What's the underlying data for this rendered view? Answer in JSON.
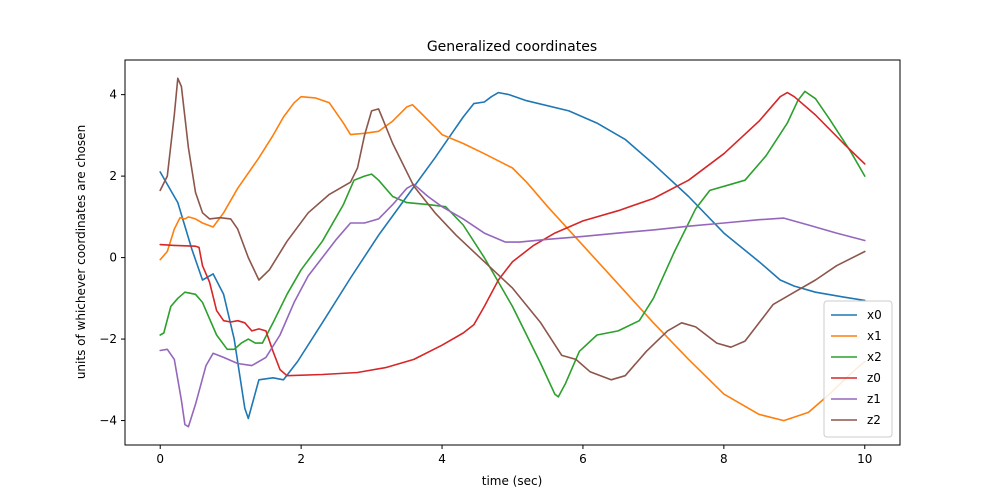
{
  "chart_data": {
    "type": "line",
    "title": "Generalized coordinates",
    "xlabel": "time (sec)",
    "ylabel": "units of whichever coordinates are chosen",
    "xlim": [
      -0.5,
      10.5
    ],
    "ylim": [
      -4.6,
      4.85
    ],
    "xticks": [
      0,
      2,
      4,
      6,
      8,
      10
    ],
    "xtick_labels": [
      "0",
      "2",
      "4",
      "6",
      "8",
      "10"
    ],
    "yticks": [
      -4,
      -2,
      0,
      2,
      4
    ],
    "ytick_labels": [
      "−4",
      "−2",
      "0",
      "2",
      "4"
    ],
    "grid": false,
    "legend_position": "lower right",
    "series": [
      {
        "name": "x0",
        "color": "#1f77b4",
        "points": [
          [
            0,
            2.1
          ],
          [
            0.25,
            1.35
          ],
          [
            0.45,
            0.2
          ],
          [
            0.6,
            -0.55
          ],
          [
            0.75,
            -0.4
          ],
          [
            0.9,
            -0.9
          ],
          [
            1.05,
            -2.0
          ],
          [
            1.2,
            -3.7
          ],
          [
            1.25,
            -3.95
          ],
          [
            1.4,
            -3.0
          ],
          [
            1.6,
            -2.95
          ],
          [
            1.75,
            -3.0
          ],
          [
            1.95,
            -2.55
          ],
          [
            2.3,
            -1.6
          ],
          [
            2.7,
            -0.5
          ],
          [
            3.1,
            0.55
          ],
          [
            3.5,
            1.5
          ],
          [
            3.9,
            2.45
          ],
          [
            4.3,
            3.45
          ],
          [
            4.45,
            3.78
          ],
          [
            4.6,
            3.82
          ],
          [
            4.7,
            3.95
          ],
          [
            4.8,
            4.05
          ],
          [
            4.95,
            4.0
          ],
          [
            5.2,
            3.85
          ],
          [
            5.8,
            3.6
          ],
          [
            6.2,
            3.3
          ],
          [
            6.6,
            2.9
          ],
          [
            7.0,
            2.3
          ],
          [
            7.5,
            1.5
          ],
          [
            8.0,
            0.6
          ],
          [
            8.5,
            -0.1
          ],
          [
            8.8,
            -0.55
          ],
          [
            9.0,
            -0.7
          ],
          [
            9.3,
            -0.85
          ],
          [
            9.7,
            -0.97
          ],
          [
            10.0,
            -1.05
          ]
        ]
      },
      {
        "name": "x1",
        "color": "#ff7f0e",
        "points": [
          [
            0,
            -0.05
          ],
          [
            0.1,
            0.15
          ],
          [
            0.2,
            0.7
          ],
          [
            0.28,
            0.98
          ],
          [
            0.35,
            0.95
          ],
          [
            0.4,
            1.0
          ],
          [
            0.5,
            0.95
          ],
          [
            0.6,
            0.85
          ],
          [
            0.75,
            0.75
          ],
          [
            0.9,
            1.1
          ],
          [
            1.1,
            1.7
          ],
          [
            1.4,
            2.45
          ],
          [
            1.6,
            3.0
          ],
          [
            1.75,
            3.45
          ],
          [
            1.9,
            3.8
          ],
          [
            2.0,
            3.95
          ],
          [
            2.2,
            3.92
          ],
          [
            2.4,
            3.8
          ],
          [
            2.6,
            3.3
          ],
          [
            2.7,
            3.02
          ],
          [
            2.9,
            3.05
          ],
          [
            3.1,
            3.1
          ],
          [
            3.3,
            3.35
          ],
          [
            3.5,
            3.7
          ],
          [
            3.58,
            3.75
          ],
          [
            3.7,
            3.55
          ],
          [
            3.9,
            3.2
          ],
          [
            4.0,
            3.02
          ],
          [
            4.3,
            2.8
          ],
          [
            4.6,
            2.55
          ],
          [
            5.0,
            2.2
          ],
          [
            5.2,
            1.85
          ],
          [
            5.5,
            1.25
          ],
          [
            6.0,
            0.3
          ],
          [
            6.5,
            -0.65
          ],
          [
            7.0,
            -1.6
          ],
          [
            7.5,
            -2.5
          ],
          [
            8.0,
            -3.35
          ],
          [
            8.5,
            -3.85
          ],
          [
            8.85,
            -4.0
          ],
          [
            9.2,
            -3.8
          ],
          [
            9.5,
            -3.35
          ],
          [
            9.8,
            -2.85
          ],
          [
            10.0,
            -2.55
          ]
        ]
      },
      {
        "name": "x2",
        "color": "#2ca02c",
        "points": [
          [
            0,
            -1.9
          ],
          [
            0.05,
            -1.85
          ],
          [
            0.15,
            -1.2
          ],
          [
            0.25,
            -1.0
          ],
          [
            0.35,
            -0.85
          ],
          [
            0.5,
            -0.9
          ],
          [
            0.6,
            -1.1
          ],
          [
            0.7,
            -1.5
          ],
          [
            0.8,
            -1.9
          ],
          [
            0.95,
            -2.25
          ],
          [
            1.05,
            -2.25
          ],
          [
            1.15,
            -2.1
          ],
          [
            1.25,
            -2.0
          ],
          [
            1.35,
            -2.1
          ],
          [
            1.45,
            -2.1
          ],
          [
            1.6,
            -1.6
          ],
          [
            1.8,
            -0.9
          ],
          [
            2.0,
            -0.3
          ],
          [
            2.3,
            0.4
          ],
          [
            2.6,
            1.3
          ],
          [
            2.75,
            1.9
          ],
          [
            2.9,
            2.0
          ],
          [
            3.0,
            2.05
          ],
          [
            3.1,
            1.9
          ],
          [
            3.3,
            1.5
          ],
          [
            3.5,
            1.35
          ],
          [
            3.8,
            1.3
          ],
          [
            4.05,
            1.25
          ],
          [
            4.3,
            0.8
          ],
          [
            4.6,
            0.0
          ],
          [
            5.0,
            -1.2
          ],
          [
            5.4,
            -2.6
          ],
          [
            5.6,
            -3.35
          ],
          [
            5.65,
            -3.42
          ],
          [
            5.75,
            -3.1
          ],
          [
            5.95,
            -2.3
          ],
          [
            6.2,
            -1.9
          ],
          [
            6.5,
            -1.8
          ],
          [
            6.8,
            -1.55
          ],
          [
            7.0,
            -1.0
          ],
          [
            7.3,
            0.15
          ],
          [
            7.6,
            1.2
          ],
          [
            7.8,
            1.65
          ],
          [
            8.1,
            1.8
          ],
          [
            8.3,
            1.9
          ],
          [
            8.6,
            2.5
          ],
          [
            8.9,
            3.3
          ],
          [
            9.05,
            3.85
          ],
          [
            9.15,
            4.08
          ],
          [
            9.3,
            3.9
          ],
          [
            9.5,
            3.4
          ],
          [
            9.8,
            2.6
          ],
          [
            10.0,
            2.0
          ]
        ]
      },
      {
        "name": "z0",
        "color": "#d62728",
        "points": [
          [
            0,
            0.32
          ],
          [
            0.2,
            0.3
          ],
          [
            0.5,
            0.28
          ],
          [
            0.55,
            0.25
          ],
          [
            0.6,
            -0.2
          ],
          [
            0.7,
            -0.6
          ],
          [
            0.8,
            -1.3
          ],
          [
            0.9,
            -1.55
          ],
          [
            1.0,
            -1.58
          ],
          [
            1.1,
            -1.55
          ],
          [
            1.2,
            -1.6
          ],
          [
            1.3,
            -1.8
          ],
          [
            1.4,
            -1.75
          ],
          [
            1.5,
            -1.8
          ],
          [
            1.6,
            -2.3
          ],
          [
            1.7,
            -2.75
          ],
          [
            1.8,
            -2.9
          ],
          [
            2.3,
            -2.87
          ],
          [
            2.8,
            -2.82
          ],
          [
            3.2,
            -2.7
          ],
          [
            3.6,
            -2.5
          ],
          [
            4.0,
            -2.15
          ],
          [
            4.3,
            -1.85
          ],
          [
            4.45,
            -1.65
          ],
          [
            4.6,
            -1.2
          ],
          [
            4.8,
            -0.55
          ],
          [
            5.0,
            -0.1
          ],
          [
            5.3,
            0.3
          ],
          [
            5.6,
            0.6
          ],
          [
            6.0,
            0.9
          ],
          [
            6.5,
            1.15
          ],
          [
            7.0,
            1.45
          ],
          [
            7.5,
            1.9
          ],
          [
            8.0,
            2.55
          ],
          [
            8.5,
            3.35
          ],
          [
            8.8,
            3.95
          ],
          [
            8.9,
            4.05
          ],
          [
            9.0,
            3.95
          ],
          [
            9.3,
            3.5
          ],
          [
            9.7,
            2.8
          ],
          [
            10.0,
            2.3
          ]
        ]
      },
      {
        "name": "z1",
        "color": "#9467bd",
        "points": [
          [
            0,
            -2.28
          ],
          [
            0.1,
            -2.25
          ],
          [
            0.2,
            -2.5
          ],
          [
            0.3,
            -3.5
          ],
          [
            0.35,
            -4.1
          ],
          [
            0.4,
            -4.15
          ],
          [
            0.5,
            -3.6
          ],
          [
            0.65,
            -2.65
          ],
          [
            0.75,
            -2.35
          ],
          [
            0.9,
            -2.45
          ],
          [
            1.1,
            -2.6
          ],
          [
            1.3,
            -2.65
          ],
          [
            1.5,
            -2.45
          ],
          [
            1.7,
            -1.9
          ],
          [
            1.9,
            -1.1
          ],
          [
            2.1,
            -0.45
          ],
          [
            2.3,
            0.0
          ],
          [
            2.5,
            0.45
          ],
          [
            2.7,
            0.85
          ],
          [
            2.9,
            0.85
          ],
          [
            3.1,
            0.95
          ],
          [
            3.3,
            1.3
          ],
          [
            3.5,
            1.7
          ],
          [
            3.6,
            1.8
          ],
          [
            3.8,
            1.5
          ],
          [
            4.0,
            1.25
          ],
          [
            4.3,
            0.95
          ],
          [
            4.6,
            0.6
          ],
          [
            4.9,
            0.38
          ],
          [
            5.1,
            0.38
          ],
          [
            5.5,
            0.45
          ],
          [
            6.0,
            0.52
          ],
          [
            6.5,
            0.6
          ],
          [
            7.0,
            0.68
          ],
          [
            7.5,
            0.77
          ],
          [
            8.0,
            0.85
          ],
          [
            8.5,
            0.93
          ],
          [
            8.85,
            0.97
          ],
          [
            9.2,
            0.8
          ],
          [
            9.6,
            0.6
          ],
          [
            10.0,
            0.42
          ]
        ]
      },
      {
        "name": "z2",
        "color": "#8c564b",
        "points": [
          [
            0,
            1.65
          ],
          [
            0.1,
            2.0
          ],
          [
            0.2,
            3.5
          ],
          [
            0.25,
            4.4
          ],
          [
            0.3,
            4.2
          ],
          [
            0.4,
            2.7
          ],
          [
            0.5,
            1.6
          ],
          [
            0.6,
            1.1
          ],
          [
            0.7,
            0.95
          ],
          [
            0.85,
            0.98
          ],
          [
            1.0,
            0.95
          ],
          [
            1.1,
            0.7
          ],
          [
            1.25,
            0.0
          ],
          [
            1.4,
            -0.55
          ],
          [
            1.55,
            -0.3
          ],
          [
            1.8,
            0.4
          ],
          [
            2.1,
            1.1
          ],
          [
            2.4,
            1.55
          ],
          [
            2.7,
            1.85
          ],
          [
            2.8,
            2.2
          ],
          [
            2.9,
            3.0
          ],
          [
            3.0,
            3.6
          ],
          [
            3.1,
            3.65
          ],
          [
            3.3,
            2.8
          ],
          [
            3.6,
            1.75
          ],
          [
            3.9,
            1.1
          ],
          [
            4.2,
            0.55
          ],
          [
            4.6,
            -0.1
          ],
          [
            5.0,
            -0.75
          ],
          [
            5.4,
            -1.6
          ],
          [
            5.7,
            -2.4
          ],
          [
            5.9,
            -2.5
          ],
          [
            6.1,
            -2.8
          ],
          [
            6.4,
            -3.0
          ],
          [
            6.6,
            -2.9
          ],
          [
            6.9,
            -2.3
          ],
          [
            7.2,
            -1.8
          ],
          [
            7.4,
            -1.6
          ],
          [
            7.6,
            -1.7
          ],
          [
            7.9,
            -2.1
          ],
          [
            8.1,
            -2.2
          ],
          [
            8.3,
            -2.05
          ],
          [
            8.5,
            -1.6
          ],
          [
            8.7,
            -1.15
          ],
          [
            9.0,
            -0.85
          ],
          [
            9.3,
            -0.55
          ],
          [
            9.6,
            -0.2
          ],
          [
            10.0,
            0.15
          ]
        ]
      }
    ]
  }
}
